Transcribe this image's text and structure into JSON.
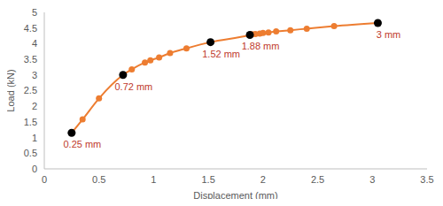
{
  "chart_data": {
    "type": "line",
    "x_label": "Displacement (mm)",
    "y_label": "Load (kN)",
    "x": [
      0.25,
      0.35,
      0.5,
      0.72,
      0.8,
      0.92,
      0.97,
      1.05,
      1.15,
      1.3,
      1.52,
      1.88,
      1.9,
      1.93,
      1.97,
      2.0,
      2.05,
      2.12,
      2.25,
      2.4,
      2.65,
      3.05
    ],
    "values": [
      1.15,
      1.58,
      2.25,
      3.0,
      3.18,
      3.4,
      3.47,
      3.56,
      3.7,
      3.85,
      4.05,
      4.28,
      4.3,
      4.31,
      4.32,
      4.34,
      4.36,
      4.39,
      4.43,
      4.48,
      4.56,
      4.66
    ],
    "color": "#ed7d31",
    "marker": "circle",
    "xlim": [
      0,
      3.5
    ],
    "xticks": [
      0,
      0.5,
      1,
      1.5,
      2,
      2.5,
      3,
      3.5
    ],
    "ylim": [
      0,
      5
    ],
    "yticks": [
      0,
      0.5,
      1,
      1.5,
      2,
      2.5,
      3,
      3.5,
      4,
      4.5,
      5
    ],
    "grid": false,
    "annotations": [
      {
        "x": 0.25,
        "y": 1.15,
        "text": "0.25 mm",
        "color": "#000000"
      },
      {
        "x": 0.72,
        "y": 3.0,
        "text": "0.72 mm",
        "color": "#000000"
      },
      {
        "x": 1.52,
        "y": 4.05,
        "text": "1.52 mm",
        "color": "#000000"
      },
      {
        "x": 1.88,
        "y": 4.28,
        "text": "1.88 mm",
        "color": "#000000"
      },
      {
        "x": 3.05,
        "y": 4.66,
        "text": "3 mm",
        "color": "#000000"
      }
    ]
  }
}
